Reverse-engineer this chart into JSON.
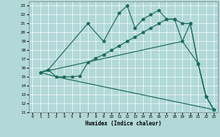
{
  "xlabel": "Humidex (Indice chaleur)",
  "bg_color": "#b2d8d8",
  "line_color": "#1a6b5a",
  "grid_color": "#ffffff",
  "xlim": [
    -0.5,
    23.5
  ],
  "ylim": [
    11,
    23.5
  ],
  "yticks": [
    11,
    12,
    13,
    14,
    15,
    16,
    17,
    18,
    19,
    20,
    21,
    22,
    23
  ],
  "xticks": [
    0,
    1,
    2,
    3,
    4,
    5,
    6,
    7,
    8,
    9,
    10,
    11,
    12,
    13,
    14,
    15,
    16,
    17,
    18,
    19,
    20,
    21,
    22,
    23
  ],
  "line1_x": [
    1,
    2,
    7,
    9,
    11,
    12,
    13,
    14,
    15,
    16,
    17,
    18,
    19,
    20,
    21,
    22,
    23
  ],
  "line1_y": [
    15.5,
    15.8,
    21.0,
    19.0,
    22.2,
    23.0,
    20.5,
    21.5,
    22.0,
    22.5,
    21.5,
    21.5,
    21.0,
    21.0,
    16.5,
    12.8,
    11.3
  ],
  "line2_x": [
    1,
    19,
    21,
    22,
    23
  ],
  "line2_y": [
    15.5,
    19.0,
    16.5,
    12.8,
    11.3
  ],
  "line3_x": [
    1,
    3,
    23
  ],
  "line3_y": [
    15.5,
    15.0,
    11.3
  ],
  "line4_x": [
    1,
    2,
    3,
    4,
    5,
    6,
    7,
    8,
    9,
    10,
    11,
    12,
    13,
    14,
    15,
    16,
    17,
    18,
    19,
    20,
    21,
    22,
    23
  ],
  "line4_y": [
    15.5,
    15.8,
    15.0,
    15.0,
    15.0,
    15.1,
    16.6,
    17.1,
    17.5,
    18.0,
    18.5,
    19.0,
    19.5,
    20.0,
    20.5,
    21.0,
    21.5,
    21.5,
    19.0,
    21.0,
    16.5,
    12.8,
    11.3
  ],
  "linewidth": 0.9
}
